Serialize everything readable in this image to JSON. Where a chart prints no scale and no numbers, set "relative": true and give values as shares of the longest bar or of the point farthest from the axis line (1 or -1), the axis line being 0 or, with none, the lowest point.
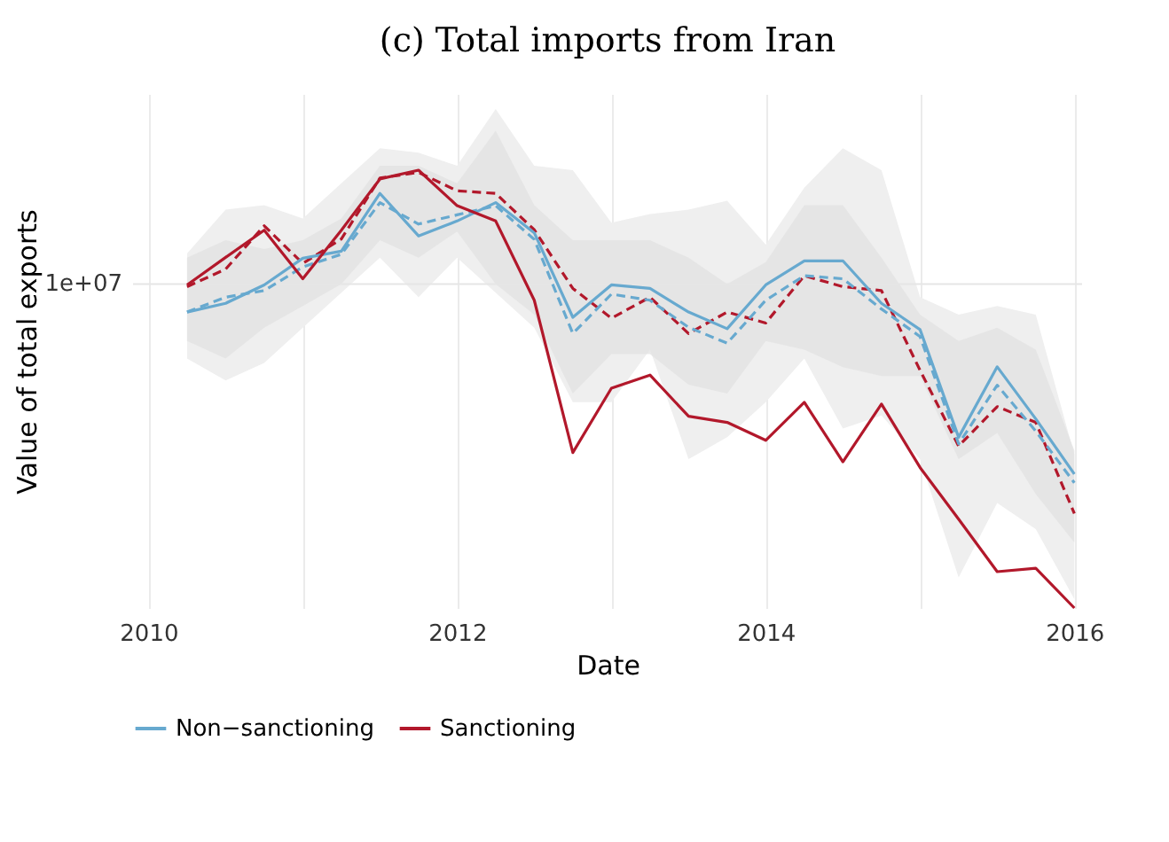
{
  "chart_data": {
    "type": "line",
    "title": "(c) Total imports from Iran",
    "xlabel": "Date",
    "ylabel": "Value of total exports",
    "relative": true,
    "x": [
      2010.25,
      2010.5,
      2010.75,
      2011,
      2011.25,
      2011.5,
      2011.75,
      2012,
      2012.25,
      2012.5,
      2012.75,
      2013,
      2013.25,
      2013.5,
      2013.75,
      2014,
      2014.25,
      2014.5,
      2014.75,
      2015,
      2015.25,
      2015.5,
      2015.75,
      2016
    ],
    "xlim": [
      2009.9,
      2016.05
    ],
    "xticks": [
      2010,
      {
        "value": 2011,
        "label": null
      },
      2012,
      {
        "value": 2013,
        "label": null
      },
      2014,
      {
        "value": 2015,
        "label": null
      },
      2016
    ],
    "series": [
      {
        "color": "#b2182b",
        "line_style": "dashed",
        "values": [
          0.734,
          0.774,
          0.873,
          0.787,
          0.843,
          0.982,
          0.995,
          0.953,
          0.947,
          0.864,
          0.73,
          0.662,
          0.71,
          0.627,
          0.676,
          0.651,
          0.759,
          0.734,
          0.725,
          0.543,
          0.37,
          0.46,
          0.424,
          0.216
        ],
        "lower": [
          0.57,
          0.52,
          0.56,
          0.64,
          0.72,
          0.8,
          0.71,
          0.8,
          0.72,
          0.64,
          0.47,
          0.47,
          0.59,
          0.34,
          0.39,
          0.47,
          0.57,
          0.41,
          0.44,
          0.34,
          0.07,
          0.24,
          0.18,
          0.02
        ],
        "upper": [
          0.81,
          0.91,
          0.92,
          0.89,
          0.97,
          1.05,
          1.04,
          1.01,
          1.14,
          1.01,
          1.0,
          0.88,
          0.9,
          0.91,
          0.93,
          0.83,
          0.96,
          1.05,
          1.0,
          0.71,
          0.67,
          0.69,
          0.67,
          0.35
        ]
      },
      {
        "color": "#67a9cf",
        "line_style": "dashed",
        "values": [
          0.676,
          0.71,
          0.725,
          0.779,
          0.808,
          0.926,
          0.877,
          0.898,
          0.919,
          0.842,
          0.627,
          0.717,
          0.703,
          0.641,
          0.605,
          0.703,
          0.759,
          0.752,
          0.683,
          0.62,
          0.375,
          0.509,
          0.404,
          0.286
        ],
        "lower": [
          0.61,
          0.57,
          0.64,
          0.69,
          0.74,
          0.84,
          0.8,
          0.86,
          0.74,
          0.67,
          0.49,
          0.58,
          0.58,
          0.51,
          0.49,
          0.61,
          0.59,
          0.55,
          0.53,
          0.53,
          0.34,
          0.4,
          0.26,
          0.15
        ],
        "upper": [
          0.8,
          0.84,
          0.82,
          0.84,
          0.89,
          1.01,
          1.01,
          0.97,
          1.09,
          0.92,
          0.84,
          0.84,
          0.84,
          0.8,
          0.74,
          0.79,
          0.92,
          0.92,
          0.8,
          0.67,
          0.61,
          0.64,
          0.59,
          0.36
        ]
      },
      {
        "name": "Non−sanctioning",
        "color": "#67a9cf",
        "line_style": "solid",
        "values": [
          0.676,
          0.696,
          0.738,
          0.799,
          0.815,
          0.947,
          0.85,
          0.884,
          0.926,
          0.857,
          0.664,
          0.738,
          0.73,
          0.676,
          0.638,
          0.738,
          0.793,
          0.793,
          0.696,
          0.636,
          0.39,
          0.551,
          0.432,
          0.306
        ]
      },
      {
        "name": "Sanctioning",
        "color": "#b2182b",
        "line_style": "solid",
        "values": [
          0.738,
          0.801,
          0.863,
          0.752,
          0.863,
          0.98,
          1.0,
          0.919,
          0.884,
          0.703,
          0.355,
          0.502,
          0.532,
          0.438,
          0.424,
          0.383,
          0.47,
          0.334,
          0.466,
          0.321,
          0.203,
          0.083,
          0.091,
          0.0
        ]
      }
    ],
    "ref_lines": [
      {
        "axis": "y",
        "value": 0.74,
        "label": "1e+07",
        "color": "#e6e6e6"
      }
    ],
    "grid": "x",
    "legend": "bottom"
  }
}
